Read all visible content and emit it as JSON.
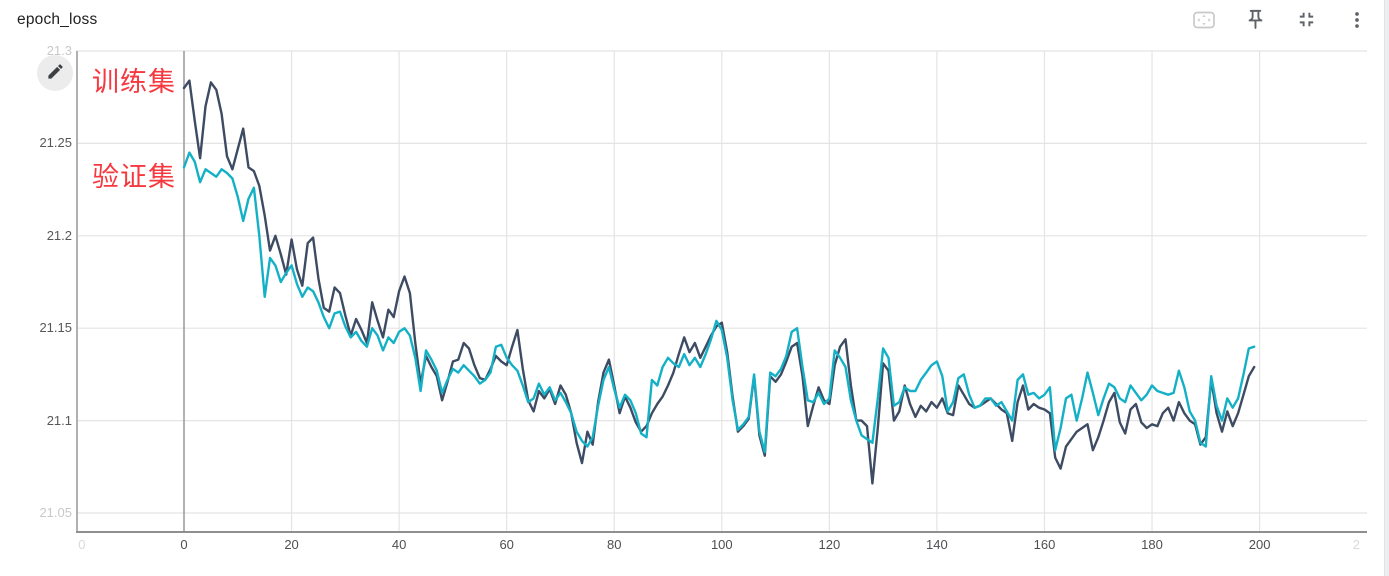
{
  "header": {
    "title": "epoch_loss",
    "toolbar_icons": [
      "region-select-icon",
      "pin-icon",
      "collapse-card-icon",
      "more-vert-icon"
    ]
  },
  "edit": {
    "icon": "pencil-icon"
  },
  "annotations": [
    {
      "text": "训练集",
      "meaning": "training set",
      "color": "#f6383f",
      "series": "train"
    },
    {
      "text": "验证集",
      "meaning": "validation set",
      "color": "#f6383f",
      "series": "validation"
    }
  ],
  "chart_data": {
    "type": "line",
    "title": "epoch_loss",
    "grid": true,
    "xlim": [
      -20,
      220
    ],
    "ylim": [
      21.04,
      21.3
    ],
    "x_ticks": [
      {
        "label": "0",
        "value": 0
      },
      {
        "label": "20",
        "value": 20
      },
      {
        "label": "40",
        "value": 40
      },
      {
        "label": "60",
        "value": 60
      },
      {
        "label": "80",
        "value": 80
      },
      {
        "label": "100",
        "value": 100
      },
      {
        "label": "120",
        "value": 120
      },
      {
        "label": "140",
        "value": 140
      },
      {
        "label": "160",
        "value": 160
      },
      {
        "label": "180",
        "value": 180
      },
      {
        "label": "200",
        "value": 200
      }
    ],
    "x_ghost_ticks": [
      {
        "label": "0",
        "value": -19
      },
      {
        "label": "2",
        "value": 218
      }
    ],
    "y_ticks": [
      {
        "label": "21.3",
        "value": 21.3,
        "ghost": true
      },
      {
        "label": "21.25",
        "value": 21.25,
        "ghost": false
      },
      {
        "label": "21.2",
        "value": 21.2,
        "ghost": false
      },
      {
        "label": "21.15",
        "value": 21.15,
        "ghost": false
      },
      {
        "label": "21.1",
        "value": 21.1,
        "ghost": false
      },
      {
        "label": "21.05",
        "value": 21.05,
        "ghost": true
      }
    ],
    "series": [
      {
        "name": "训练集 (train epoch_loss)",
        "color": "#3d4b63",
        "x_start": 0,
        "x_step": 1,
        "values": [
          21.28,
          21.284,
          21.262,
          21.242,
          21.27,
          21.283,
          21.279,
          21.266,
          21.243,
          21.236,
          21.247,
          21.258,
          21.237,
          21.235,
          21.227,
          21.211,
          21.192,
          21.2,
          21.19,
          21.179,
          21.198,
          21.182,
          21.173,
          21.196,
          21.199,
          21.177,
          21.161,
          21.159,
          21.172,
          21.169,
          21.157,
          21.146,
          21.155,
          21.149,
          21.142,
          21.164,
          21.154,
          21.145,
          21.16,
          21.156,
          21.17,
          21.178,
          21.169,
          21.142,
          21.12,
          21.135,
          21.129,
          21.124,
          21.111,
          21.121,
          21.132,
          21.133,
          21.142,
          21.139,
          21.13,
          21.123,
          21.122,
          21.128,
          21.135,
          21.132,
          21.13,
          21.14,
          21.149,
          21.128,
          21.111,
          21.105,
          21.116,
          21.112,
          21.117,
          21.109,
          21.119,
          21.114,
          21.104,
          21.088,
          21.077,
          21.094,
          21.087,
          21.11,
          21.126,
          21.133,
          21.119,
          21.104,
          21.113,
          21.107,
          21.099,
          21.094,
          21.097,
          21.104,
          21.109,
          21.113,
          21.119,
          21.126,
          21.136,
          21.145,
          21.137,
          21.142,
          21.134,
          21.14,
          21.146,
          21.151,
          21.153,
          21.137,
          21.113,
          21.094,
          21.097,
          21.101,
          21.124,
          21.092,
          21.081,
          21.124,
          21.121,
          21.125,
          21.132,
          21.14,
          21.142,
          21.124,
          21.097,
          21.108,
          21.118,
          21.111,
          21.109,
          21.13,
          21.14,
          21.144,
          21.119,
          21.1,
          21.1,
          21.097,
          21.066,
          21.096,
          21.131,
          21.127,
          21.1,
          21.105,
          21.119,
          21.109,
          21.102,
          21.108,
          21.105,
          21.11,
          21.107,
          21.112,
          21.104,
          21.103,
          21.119,
          21.114,
          21.109,
          21.107,
          21.108,
          21.11,
          21.112,
          21.109,
          21.106,
          21.104,
          21.089,
          21.11,
          21.119,
          21.106,
          21.109,
          21.107,
          21.106,
          21.104,
          21.08,
          21.074,
          21.086,
          21.09,
          21.094,
          21.096,
          21.098,
          21.084,
          21.091,
          21.1,
          21.11,
          21.115,
          21.099,
          21.093,
          21.106,
          21.109,
          21.099,
          21.096,
          21.098,
          21.097,
          21.104,
          21.107,
          21.1,
          21.11,
          21.104,
          21.1,
          21.098,
          21.087,
          21.091,
          21.122,
          21.104,
          21.094,
          21.105,
          21.097,
          21.104,
          21.114,
          21.124,
          21.129
        ]
      },
      {
        "name": "验证集 (validation epoch_loss)",
        "color": "#14b1c6",
        "x_start": 0,
        "x_step": 1,
        "values": [
          21.237,
          21.245,
          21.24,
          21.229,
          21.236,
          21.234,
          21.232,
          21.236,
          21.234,
          21.231,
          21.221,
          21.208,
          21.22,
          21.226,
          21.2,
          21.167,
          21.188,
          21.184,
          21.175,
          21.18,
          21.184,
          21.174,
          21.167,
          21.172,
          21.17,
          21.164,
          21.156,
          21.15,
          21.158,
          21.159,
          21.151,
          21.145,
          21.148,
          21.143,
          21.14,
          21.15,
          21.146,
          21.138,
          21.145,
          21.142,
          21.148,
          21.15,
          21.146,
          21.134,
          21.116,
          21.138,
          21.133,
          21.127,
          21.115,
          21.122,
          21.128,
          21.126,
          21.13,
          21.127,
          21.124,
          21.12,
          21.122,
          21.126,
          21.14,
          21.141,
          21.134,
          21.13,
          21.127,
          21.119,
          21.11,
          21.112,
          21.12,
          21.114,
          21.118,
          21.111,
          21.115,
          21.11,
          21.104,
          21.094,
          21.089,
          21.086,
          21.091,
          21.108,
          21.122,
          21.129,
          21.117,
          21.107,
          21.114,
          21.111,
          21.104,
          21.093,
          21.091,
          21.122,
          21.119,
          21.129,
          21.134,
          21.131,
          21.129,
          21.136,
          21.13,
          21.134,
          21.129,
          21.136,
          21.144,
          21.154,
          21.149,
          21.134,
          21.111,
          21.095,
          21.098,
          21.102,
          21.125,
          21.094,
          21.083,
          21.126,
          21.124,
          21.128,
          21.135,
          21.148,
          21.15,
          21.129,
          21.111,
          21.11,
          21.115,
          21.109,
          21.112,
          21.138,
          21.134,
          21.129,
          21.111,
          21.1,
          21.092,
          21.09,
          21.088,
          21.112,
          21.139,
          21.134,
          21.108,
          21.11,
          21.118,
          21.116,
          21.116,
          21.122,
          21.126,
          21.13,
          21.132,
          21.124,
          21.105,
          21.11,
          21.123,
          21.125,
          21.114,
          21.107,
          21.108,
          21.112,
          21.112,
          21.108,
          21.11,
          21.105,
          21.1,
          21.122,
          21.125,
          21.114,
          21.115,
          21.112,
          21.114,
          21.118,
          21.084,
          21.096,
          21.112,
          21.114,
          21.1,
          21.112,
          21.126,
          21.115,
          21.103,
          21.112,
          21.12,
          21.118,
          21.112,
          21.11,
          21.119,
          21.115,
          21.111,
          21.114,
          21.119,
          21.116,
          21.115,
          21.114,
          21.115,
          21.127,
          21.118,
          21.105,
          21.1,
          21.088,
          21.086,
          21.124,
          21.108,
          21.1,
          21.112,
          21.107,
          21.112,
          21.125,
          21.139,
          21.14
        ]
      }
    ]
  }
}
